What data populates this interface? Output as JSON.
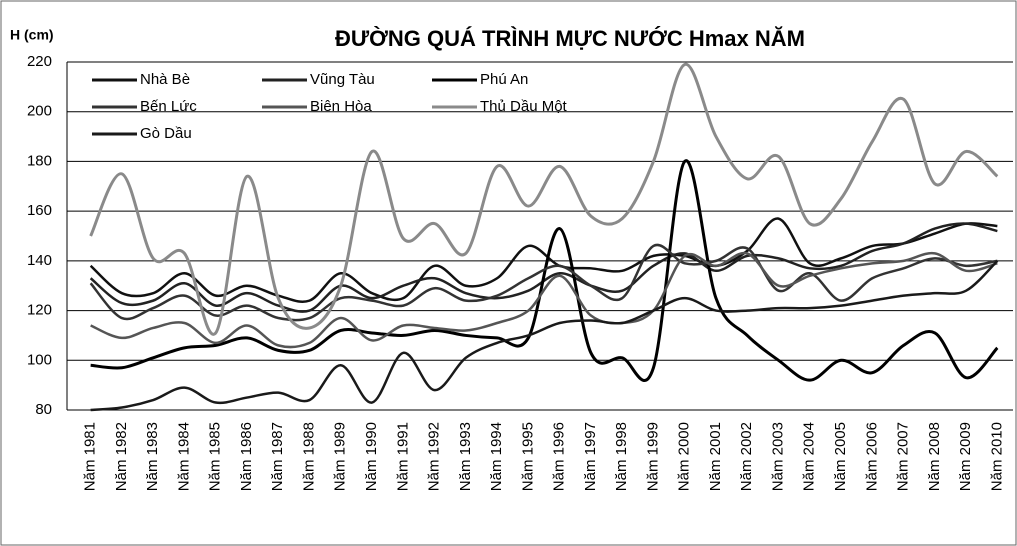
{
  "chart_data": {
    "type": "line",
    "title": "ĐƯỜNG QUÁ TRÌNH MỰC NƯỚC Hmax NĂM",
    "y_label": "H (cm)",
    "categories": [
      "Năm 1981",
      "Năm 1982",
      "Năm 1983",
      "Năm 1984",
      "Năm 1985",
      "Năm 1986",
      "Năm 1987",
      "Năm 1988",
      "Năm 1989",
      "Năm 1990",
      "Năm 1991",
      "Năm 1992",
      "Năm 1993",
      "Năm 1994",
      "Năm 1995",
      "Năm 1996",
      "Năm 1997",
      "Năm 1998",
      "Năm 1999",
      "Năm 2000",
      "Năm 2001",
      "Năm 2002",
      "Năm 2003",
      "Năm 2004",
      "Năm 2005",
      "Năm 2006",
      "Năm 2007",
      "Năm 2008",
      "Năm 2009",
      "Năm 2010"
    ],
    "series": [
      {
        "name": "Nhà Bè",
        "color": "#111111",
        "width": 2.5,
        "values": [
          138,
          127,
          127,
          135,
          126,
          130,
          126,
          124,
          135,
          127,
          125,
          138,
          130,
          133,
          146,
          138,
          137,
          136,
          142,
          142,
          138,
          144,
          157,
          139,
          141,
          146,
          147,
          151,
          155,
          154
        ]
      },
      {
        "name": "Vũng Tàu",
        "color": "#222222",
        "width": 2.5,
        "values": [
          133,
          123,
          124,
          131,
          122,
          127,
          122,
          120,
          130,
          125,
          130,
          133,
          127,
          125,
          128,
          135,
          130,
          128,
          138,
          143,
          136,
          142,
          141,
          137,
          138,
          144,
          147,
          153,
          155,
          152
        ]
      },
      {
        "name": "Phú An",
        "color": "#000000",
        "width": 3,
        "values": [
          98,
          97,
          101,
          105,
          106,
          109,
          104,
          104,
          112,
          111,
          110,
          112,
          110,
          109,
          109,
          153,
          103,
          101,
          97,
          180,
          125,
          110,
          100,
          92,
          100,
          95,
          106,
          111,
          93,
          105
        ]
      },
      {
        "name": "Bến Lức",
        "color": "#333333",
        "width": 2.5,
        "values": [
          131,
          117,
          121,
          126,
          118,
          122,
          117,
          117,
          125,
          124,
          122,
          129,
          124,
          126,
          133,
          138,
          130,
          125,
          146,
          139,
          140,
          145,
          128,
          135,
          124,
          133,
          137,
          141,
          138,
          140
        ]
      },
      {
        "name": "Biên Hòa",
        "color": "#555555",
        "width": 2.5,
        "values": [
          114,
          109,
          113,
          115,
          107,
          114,
          106,
          107,
          117,
          108,
          114,
          113,
          112,
          115,
          120,
          134,
          118,
          115,
          120,
          142,
          138,
          143,
          130,
          134,
          137,
          139,
          140,
          143,
          136,
          139
        ]
      },
      {
        "name": "Thủ Dầu Một",
        "color": "#8a8a8a",
        "width": 3,
        "values": [
          150,
          175,
          141,
          143,
          111,
          174,
          125,
          113,
          130,
          184,
          149,
          155,
          143,
          178,
          162,
          178,
          158,
          157,
          180,
          219,
          190,
          173,
          182,
          155,
          165,
          188,
          205,
          171,
          184,
          174
        ]
      },
      {
        "name": "Gò Dầu",
        "color": "#1a1a1a",
        "width": 2.5,
        "values": [
          80,
          81,
          84,
          89,
          83,
          85,
          87,
          84,
          98,
          83,
          103,
          88,
          101,
          107,
          110,
          115,
          116,
          115,
          120,
          125,
          120,
          120,
          121,
          121,
          122,
          124,
          126,
          127,
          128,
          140
        ]
      }
    ],
    "ylim": [
      80,
      220
    ],
    "yticks": [
      80,
      100,
      120,
      140,
      160,
      180,
      200,
      220
    ],
    "grid": true
  }
}
